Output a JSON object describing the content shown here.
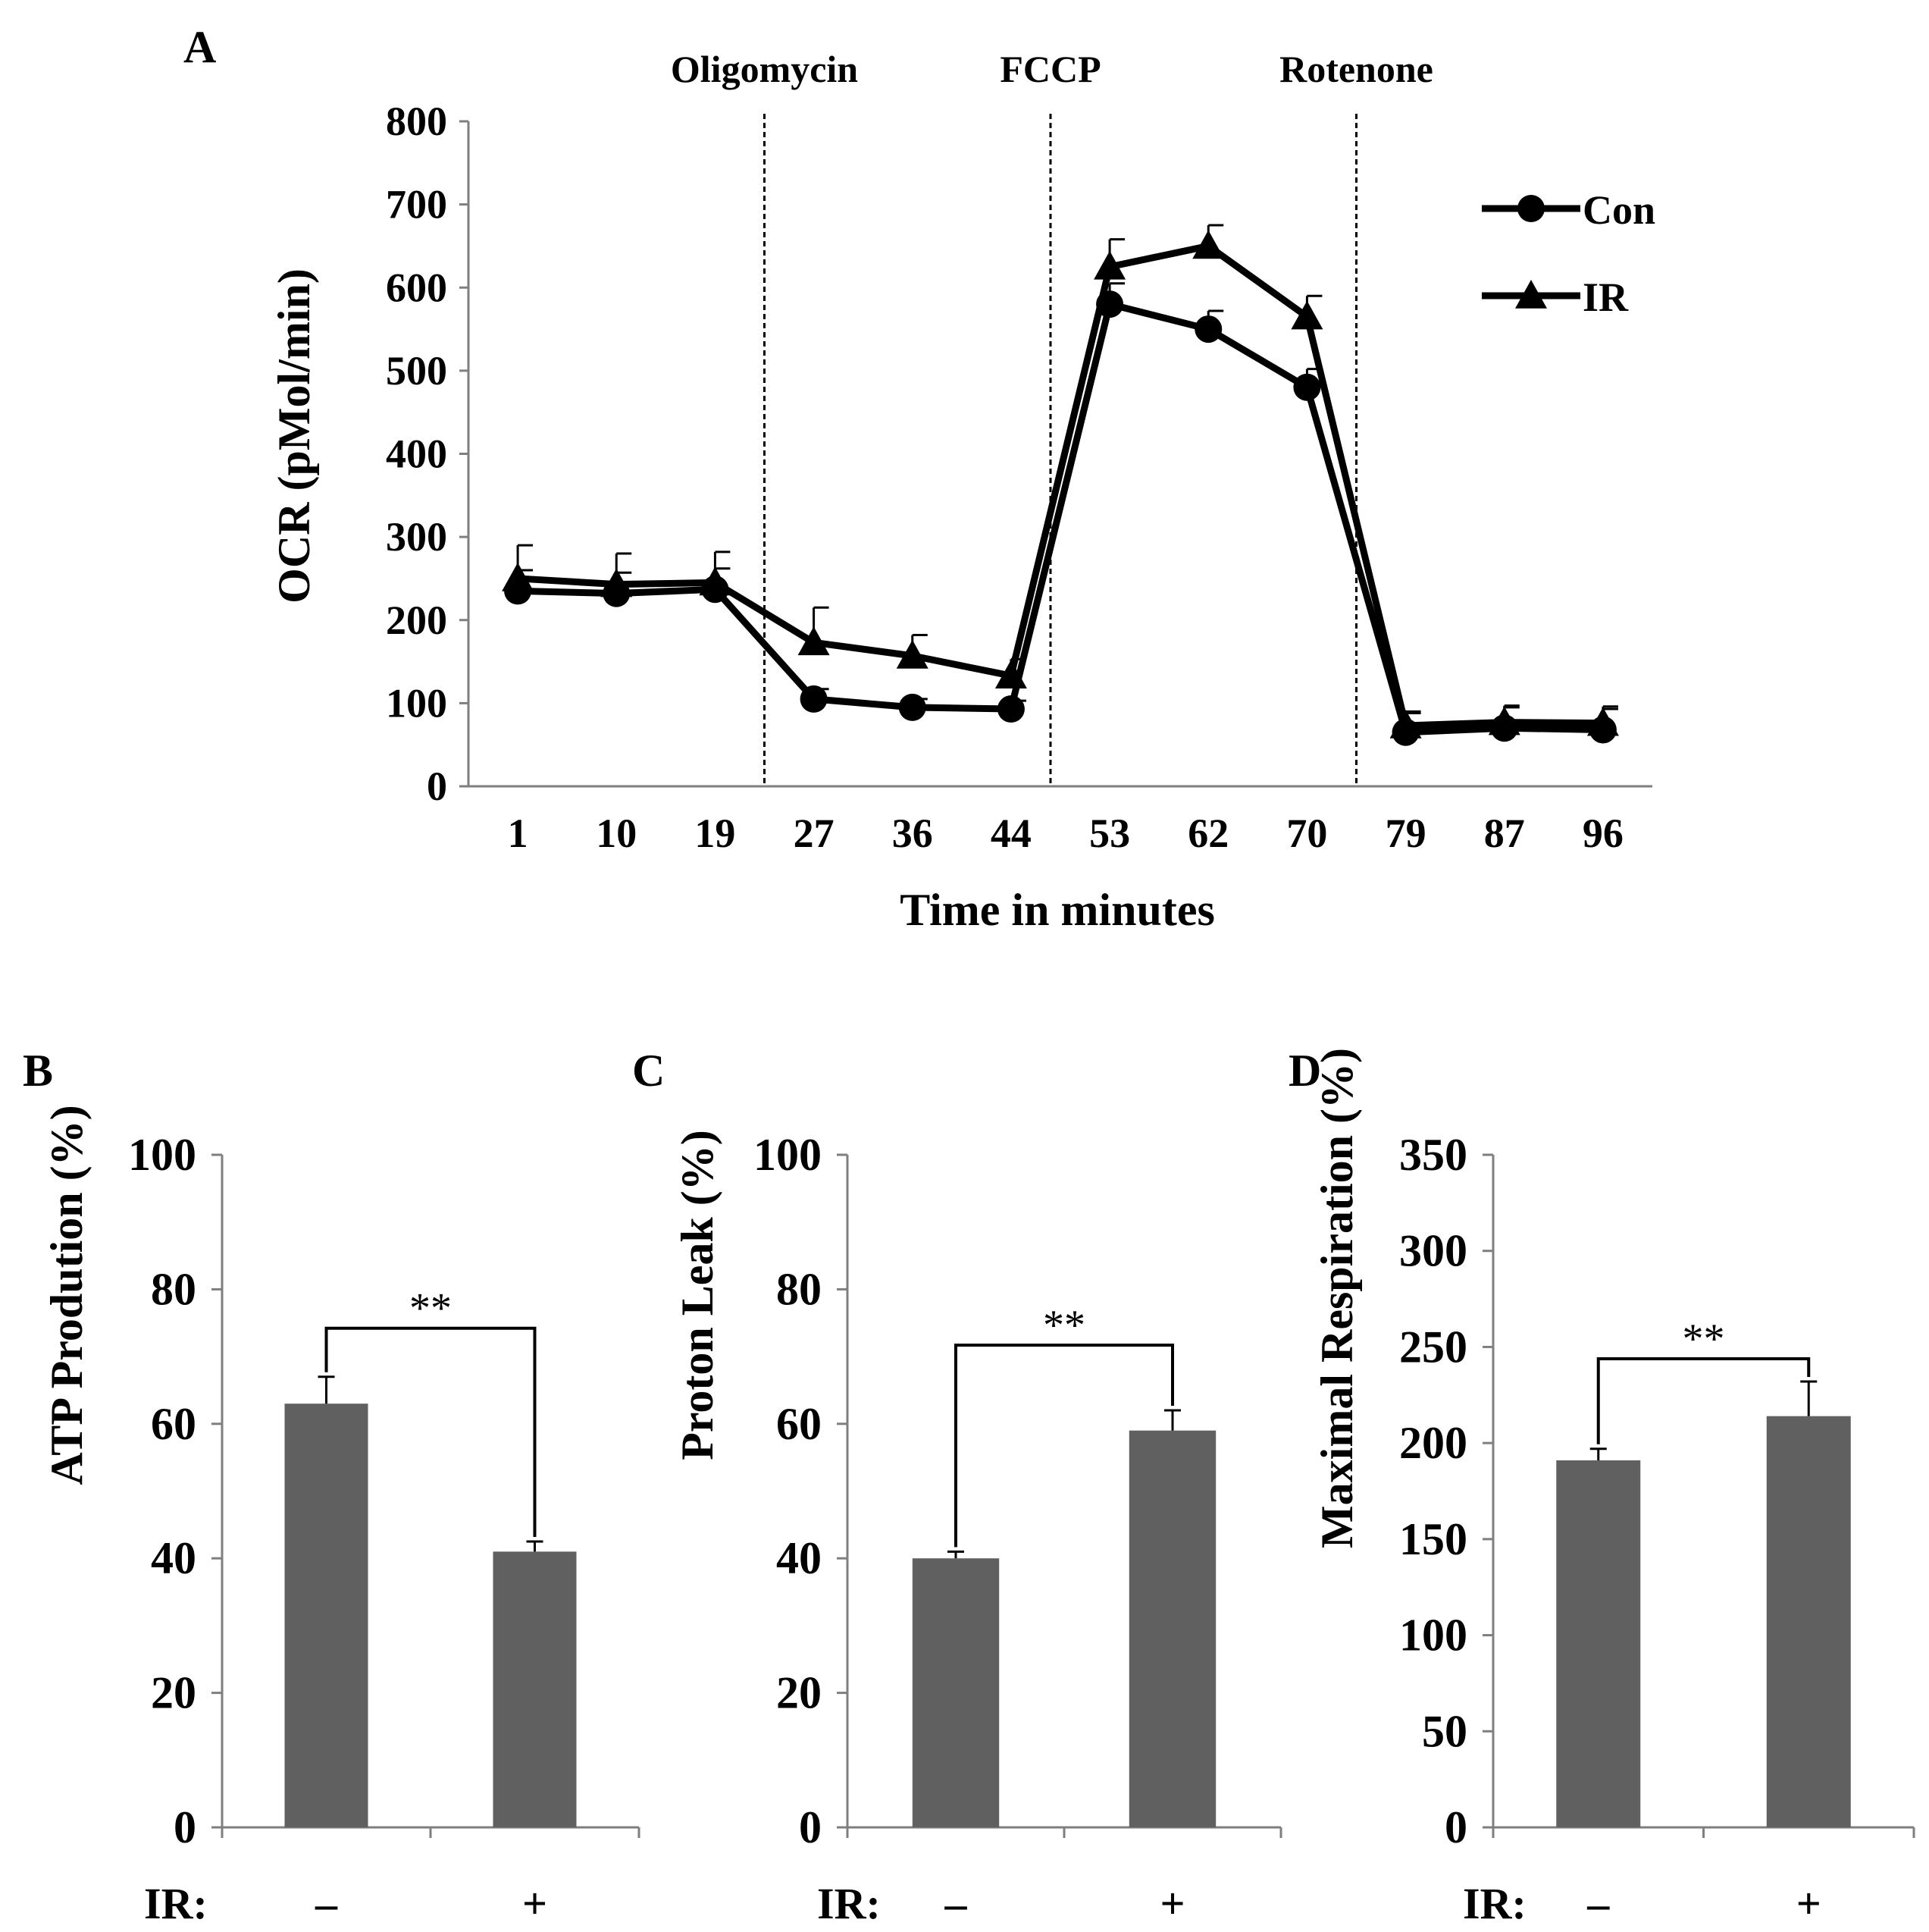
{
  "chart_data": [
    {
      "panel": "A",
      "type": "line",
      "title": "",
      "xlabel": "Time in minutes",
      "ylabel": "OCR (pMol/min)",
      "ylim": [
        0,
        800
      ],
      "yticks": [
        0,
        100,
        200,
        300,
        400,
        500,
        600,
        700,
        800
      ],
      "x": [
        "1",
        "10",
        "19",
        "27",
        "36",
        "44",
        "53",
        "62",
        "70",
        "79",
        "87",
        "96"
      ],
      "series": [
        {
          "name": "Con",
          "marker": "circle",
          "values": [
            235,
            232,
            237,
            105,
            95,
            93,
            580,
            550,
            480,
            65,
            70,
            68
          ],
          "errors": [
            25,
            25,
            25,
            12,
            10,
            10,
            25,
            22,
            22,
            25,
            25,
            25
          ]
        },
        {
          "name": "IR",
          "marker": "triangle",
          "values": [
            250,
            243,
            245,
            173,
            157,
            133,
            625,
            650,
            565,
            73,
            77,
            76
          ],
          "errors": [
            40,
            37,
            37,
            42,
            25,
            20,
            33,
            25,
            25,
            15,
            20,
            20
          ]
        }
      ],
      "annotations": [
        {
          "label": "Oligomycin",
          "after_index": 2.5
        },
        {
          "label": "FCCP",
          "after_index": 5.4
        },
        {
          "label": "Rotenone",
          "after_index": 8.5
        }
      ],
      "legend": "top-right"
    },
    {
      "panel": "B",
      "type": "bar",
      "ylabel": "ATP Prodution (%)",
      "ylim": [
        0,
        100
      ],
      "yticks": [
        0,
        20,
        40,
        60,
        80,
        100
      ],
      "group_label": "IR:",
      "categories": [
        "–",
        "+"
      ],
      "values": [
        63,
        41
      ],
      "errors": [
        4,
        1.5
      ],
      "significance": "**"
    },
    {
      "panel": "C",
      "type": "bar",
      "ylabel": "Proton Leak  (%)",
      "ylim": [
        0,
        100
      ],
      "yticks": [
        0,
        20,
        40,
        60,
        80,
        100
      ],
      "group_label": "IR:",
      "categories": [
        "–",
        "+"
      ],
      "values": [
        40,
        59
      ],
      "errors": [
        1,
        3
      ],
      "significance": "**"
    },
    {
      "panel": "D",
      "type": "bar",
      "ylabel": "Maximal Respiration (%)",
      "ylim": [
        0,
        350
      ],
      "yticks": [
        0,
        50,
        100,
        150,
        200,
        250,
        300,
        350
      ],
      "group_label": "IR:",
      "categories": [
        "–",
        "+"
      ],
      "values": [
        191,
        214
      ],
      "errors": [
        6,
        18
      ],
      "significance": "**"
    }
  ],
  "colors": {
    "line": "#000000",
    "bar": "#606060",
    "axis": "#7f7f7f",
    "background": "#ffffff"
  }
}
